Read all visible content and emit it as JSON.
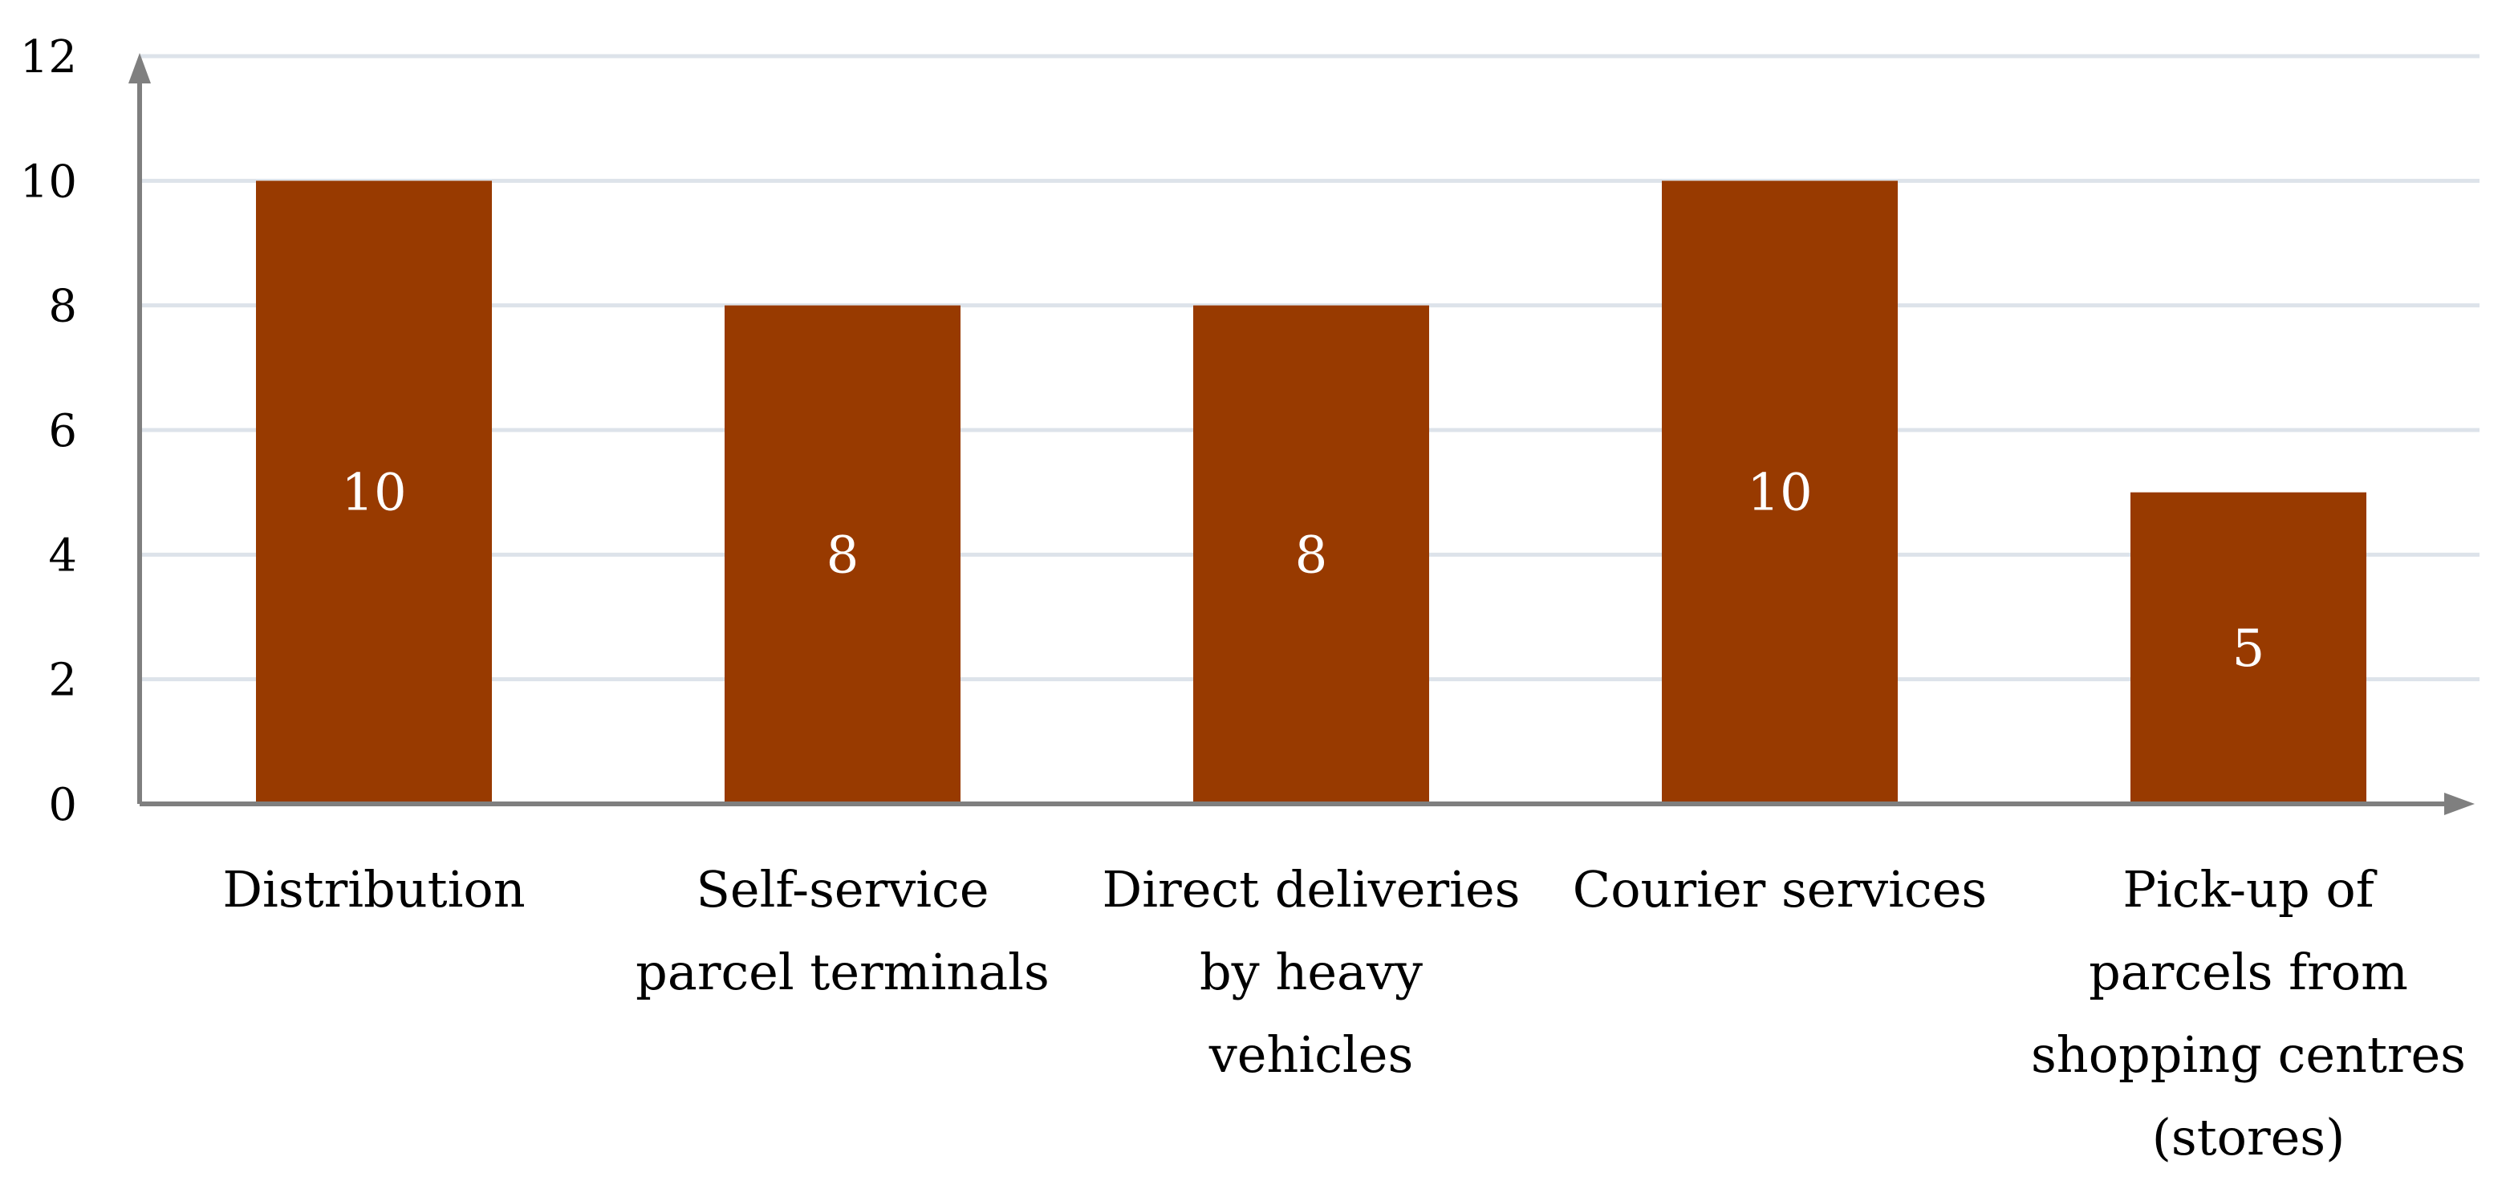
{
  "chart_data": {
    "type": "bar",
    "categories": [
      [
        "Distribution"
      ],
      [
        "Self-service",
        "parcel terminals"
      ],
      [
        "Direct deliveries",
        "by heavy",
        "vehicles"
      ],
      [
        "Courier services"
      ],
      [
        "Pick-up of",
        "parcels from",
        "shopping centres",
        "(stores)"
      ]
    ],
    "values": [
      10,
      8,
      8,
      10,
      5
    ],
    "data_labels": [
      "10",
      "8",
      "8",
      "10",
      "5"
    ],
    "title": "",
    "xlabel": "",
    "ylabel": "",
    "ylim": [
      0,
      12
    ],
    "yticks": [
      0,
      2,
      4,
      6,
      8,
      10,
      12
    ],
    "ytick_labels": [
      "0",
      "2",
      "4",
      "6",
      "8",
      "10",
      "12"
    ],
    "grid": true,
    "legend": "none",
    "colors": {
      "bar": "#983A00",
      "grid": "#dde3ea",
      "axis": "#7f7f7f",
      "bar_label": "#ffffff"
    }
  }
}
